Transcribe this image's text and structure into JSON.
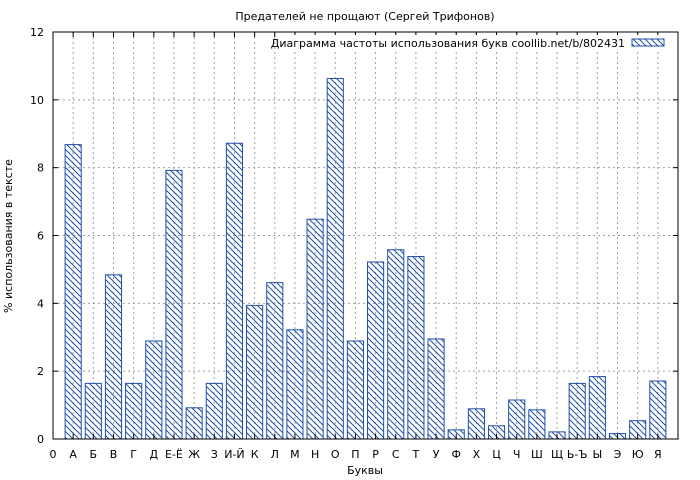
{
  "chart_data": {
    "type": "bar",
    "title": "Предателей не прощают (Сергей Трифонов)",
    "xlabel": "Буквы",
    "ylabel": "% использования в тексте",
    "ylim": [
      0,
      12
    ],
    "yticks": [
      "0",
      "2",
      "4",
      "6",
      "8",
      "10",
      "12"
    ],
    "x_tick_labels": [
      "0",
      "А",
      "Б",
      "В",
      "Г",
      "Д",
      "Е-Ё",
      "Ж",
      "З",
      "И-Й",
      "К",
      "Л",
      "М",
      "Н",
      "О",
      "П",
      "Р",
      "С",
      "Т",
      "У",
      "Ф",
      "Х",
      "Ц",
      "Ч",
      "Ш",
      "Щ",
      "Ь-Ъ",
      "Ы",
      "Э",
      "Ю",
      "Я"
    ],
    "categories": [
      "А",
      "Б",
      "В",
      "Г",
      "Д",
      "Е-Ё",
      "Ж",
      "З",
      "И-Й",
      "К",
      "Л",
      "М",
      "Н",
      "О",
      "П",
      "Р",
      "С",
      "Т",
      "У",
      "Ф",
      "Х",
      "Ц",
      "Ч",
      "Ш",
      "Щ",
      "Ь-Ъ",
      "Ы",
      "Э",
      "Ю",
      "Я"
    ],
    "series": [
      {
        "name": "Диаграмма частоты использования букв coollib.net/b/802431",
        "values": [
          8.68,
          1.64,
          4.84,
          1.64,
          2.89,
          7.92,
          0.92,
          1.64,
          8.72,
          3.94,
          4.61,
          3.22,
          6.48,
          10.63,
          2.89,
          5.22,
          5.58,
          5.38,
          2.95,
          0.27,
          0.89,
          0.39,
          1.15,
          0.86,
          0.21,
          1.64,
          1.84,
          0.16,
          0.54,
          1.71
        ]
      }
    ],
    "colors": {
      "bar_stroke": "#1f4fa8",
      "grid": "#a0a0a0"
    },
    "grid": true,
    "legend_position": "top-right"
  }
}
